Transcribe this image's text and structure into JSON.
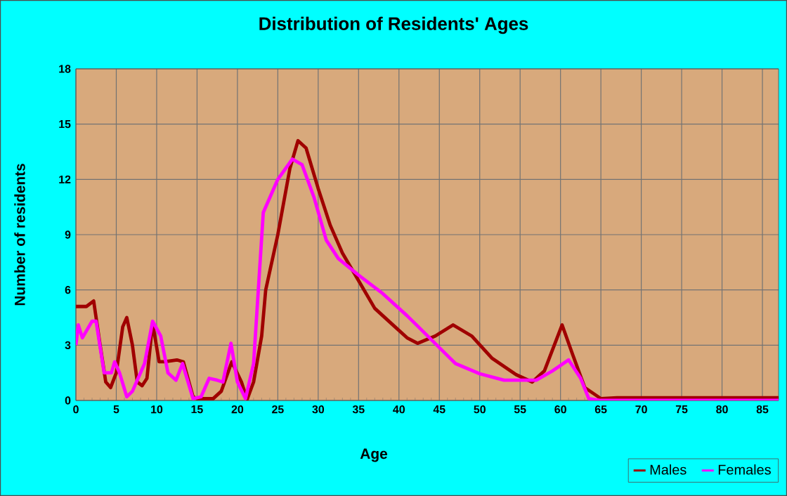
{
  "chart_data": {
    "type": "line",
    "title": "Distribution of Residents' Ages",
    "xlabel": "Age",
    "ylabel": "Number of residents",
    "xlim": [
      0,
      87
    ],
    "ylim": [
      0,
      18
    ],
    "xticks": [
      0,
      5,
      10,
      15,
      20,
      25,
      30,
      35,
      40,
      45,
      50,
      55,
      60,
      65,
      70,
      75,
      80,
      85
    ],
    "yticks": [
      0,
      3,
      6,
      9,
      12,
      15,
      18
    ],
    "grid": true,
    "legend": "bottom right",
    "marker": "none",
    "line_style": "solid",
    "series": [
      {
        "name": "Males",
        "color": "#a00000",
        "x": [
          0,
          1.3,
          2.2,
          3,
          3.7,
          4.3,
          5,
          5.8,
          6.3,
          7,
          7.6,
          8.2,
          8.8,
          9.5,
          10.3,
          11,
          12.5,
          13.3,
          14.5,
          15,
          17,
          18,
          19.3,
          20.5,
          21.2,
          22,
          23,
          23.5,
          25,
          26.5,
          27.5,
          28.5,
          30,
          31.5,
          33,
          35,
          37,
          39,
          41,
          42.3,
          44.5,
          46.7,
          49,
          51.5,
          54.5,
          56.5,
          58,
          60.2,
          61.5,
          63,
          65,
          67,
          87
        ],
        "values": [
          5.1,
          5.1,
          5.4,
          3,
          1,
          0.7,
          1.5,
          4,
          4.5,
          3,
          1,
          0.8,
          1.2,
          4.2,
          2.1,
          2.1,
          2.2,
          2.1,
          0.2,
          0.1,
          0.1,
          0.5,
          2.1,
          1,
          0.05,
          1,
          3.5,
          6,
          9,
          12.6,
          14.1,
          13.7,
          11.5,
          9.5,
          8,
          6.5,
          5,
          4.2,
          3.4,
          3.1,
          3.5,
          4.1,
          3.5,
          2.3,
          1.4,
          1,
          1.6,
          4.1,
          2.5,
          0.7,
          0.1,
          0.15,
          0.15
        ]
      },
      {
        "name": "Females",
        "color": "#ff00ff",
        "x": [
          0,
          0.3,
          0.8,
          2,
          2.5,
          3.5,
          4.4,
          4.8,
          5.4,
          6.3,
          7,
          7.7,
          8.5,
          9.5,
          10.5,
          11.4,
          12.4,
          13.2,
          14.5,
          15.5,
          16.5,
          17.5,
          18.2,
          19.2,
          20,
          21,
          22,
          23.2,
          25,
          26.8,
          28,
          29.5,
          31,
          32.5,
          35,
          38,
          41,
          42.4,
          44.7,
          47,
          50,
          53,
          57,
          59,
          61,
          62.5,
          63.5,
          65,
          87
        ],
        "values": [
          3,
          4.1,
          3.4,
          4.3,
          4.3,
          1.5,
          1.5,
          2.1,
          1.5,
          0.2,
          0.5,
          1.2,
          2,
          4.3,
          3.5,
          1.5,
          1.1,
          2,
          0.1,
          0.2,
          1.2,
          1.1,
          1,
          3.1,
          1,
          0.1,
          2,
          10.2,
          12,
          13.1,
          12.8,
          11,
          8.7,
          7.7,
          6.8,
          5.8,
          4.6,
          4,
          3,
          2,
          1.45,
          1.1,
          1.1,
          1.6,
          2.2,
          1.2,
          0.1,
          0,
          0
        ]
      }
    ]
  }
}
